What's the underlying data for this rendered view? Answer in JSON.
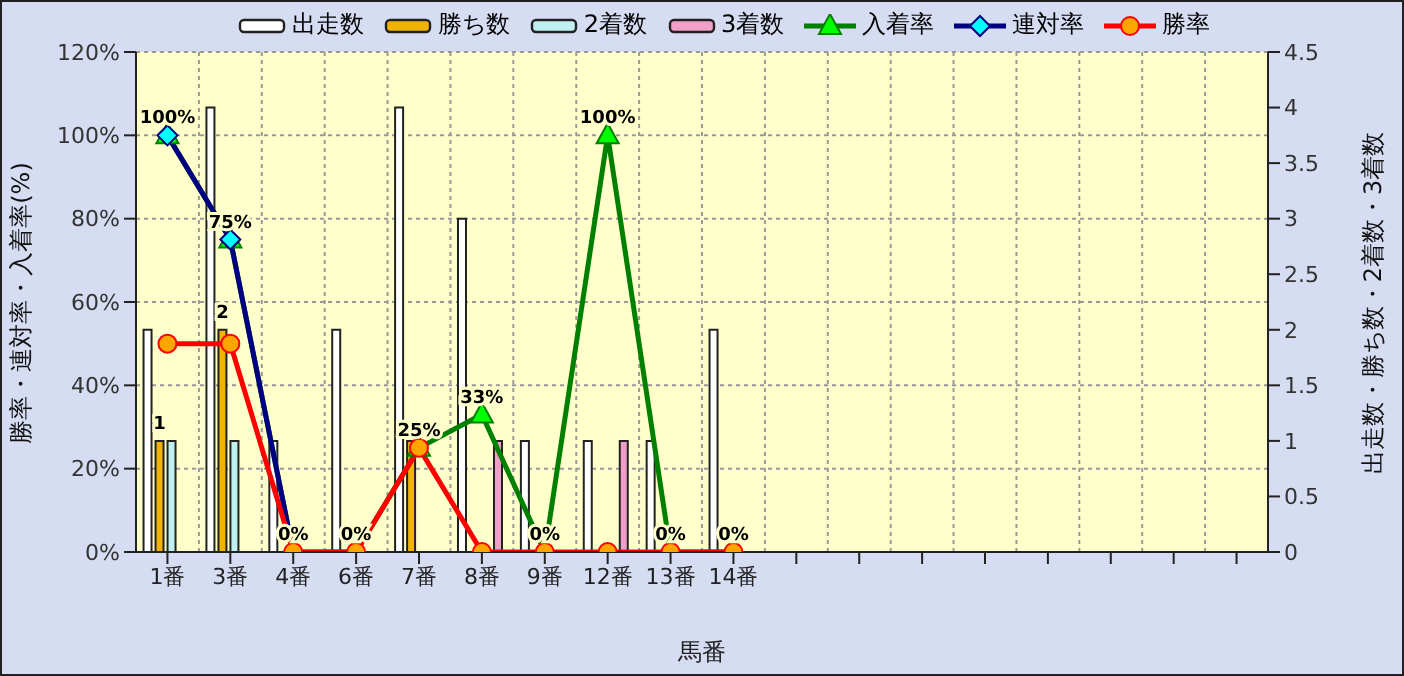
{
  "chart_data": {
    "type": "bar",
    "xlabel": "馬番",
    "ylabel": "勝率・連対率・入着率(%)",
    "y2label": "出走数・勝ち数・2着数・3着数",
    "categories": [
      "1番",
      "3番",
      "4番",
      "6番",
      "7番",
      "8番",
      "9番",
      "12番",
      "13番",
      "14番",
      null,
      null,
      null,
      null,
      null,
      null,
      null,
      null
    ],
    "series": [
      {
        "name": "出走数",
        "axis": "y2",
        "color": "#ffffff",
        "values": [
          2,
          4,
          1,
          2,
          4,
          3,
          1,
          1,
          1,
          2,
          null,
          null,
          null,
          null,
          null,
          null,
          null,
          null
        ]
      },
      {
        "name": "勝ち数",
        "axis": "y2",
        "color": "#f0b400",
        "values": [
          1,
          2,
          0,
          0,
          1,
          0,
          0,
          0,
          0,
          0,
          null,
          null,
          null,
          null,
          null,
          null,
          null,
          null
        ],
        "value_labels": [
          "1",
          "2",
          null,
          null,
          null,
          null,
          null,
          null,
          null,
          null,
          null,
          null,
          null,
          null,
          null,
          null,
          null,
          null
        ]
      },
      {
        "name": "2着数",
        "axis": "y2",
        "color": "#c0f0f0",
        "values": [
          1,
          1,
          0,
          0,
          0,
          0,
          0,
          0,
          0,
          0,
          null,
          null,
          null,
          null,
          null,
          null,
          null,
          null
        ]
      },
      {
        "name": "3着数",
        "axis": "y2",
        "color": "#f0a0c8",
        "values": [
          0,
          0,
          0,
          0,
          0,
          1,
          0,
          1,
          0,
          0,
          null,
          null,
          null,
          null,
          null,
          null,
          null,
          null
        ]
      },
      {
        "name": "入着率",
        "type": "line",
        "axis": "y",
        "color": "#008000",
        "marker": "triangle",
        "values": [
          100,
          75,
          0,
          0,
          25,
          33,
          0,
          100,
          0,
          0,
          null,
          null,
          null,
          null,
          null,
          null,
          null,
          null
        ],
        "value_labels": [
          "100%",
          "75%",
          "0%",
          "0%",
          "25%",
          "33%",
          "0%",
          "100%",
          "0%",
          "0%",
          null,
          null,
          null,
          null,
          null,
          null,
          null,
          null
        ]
      },
      {
        "name": "連対率",
        "type": "line",
        "axis": "y",
        "color": "#000080",
        "marker": "diamond",
        "values": [
          100,
          75,
          0,
          null,
          null,
          null,
          null,
          null,
          null,
          null,
          null,
          null,
          null,
          null,
          null,
          null,
          null,
          null
        ]
      },
      {
        "name": "勝率",
        "type": "line",
        "axis": "y",
        "color": "#ff0000",
        "marker": "circle",
        "values": [
          50,
          50,
          0,
          0,
          25,
          0,
          0,
          0,
          0,
          0,
          null,
          null,
          null,
          null,
          null,
          null,
          null,
          null
        ]
      }
    ],
    "ylim": [
      0,
      120
    ],
    "yticks": [
      {
        "value": 0,
        "label": "0%"
      },
      {
        "value": 20,
        "label": "20%"
      },
      {
        "value": 40,
        "label": "40%"
      },
      {
        "value": 60,
        "label": "60%"
      },
      {
        "value": 80,
        "label": "80%"
      },
      {
        "value": 100,
        "label": "100%"
      },
      {
        "value": 120,
        "label": "120%"
      }
    ],
    "y2lim": [
      0,
      4.5
    ],
    "y2ticks": [
      0,
      0.5,
      1,
      1.5,
      2,
      2.5,
      3,
      3.5,
      4,
      4.5
    ],
    "grid": true,
    "legend": "top"
  }
}
